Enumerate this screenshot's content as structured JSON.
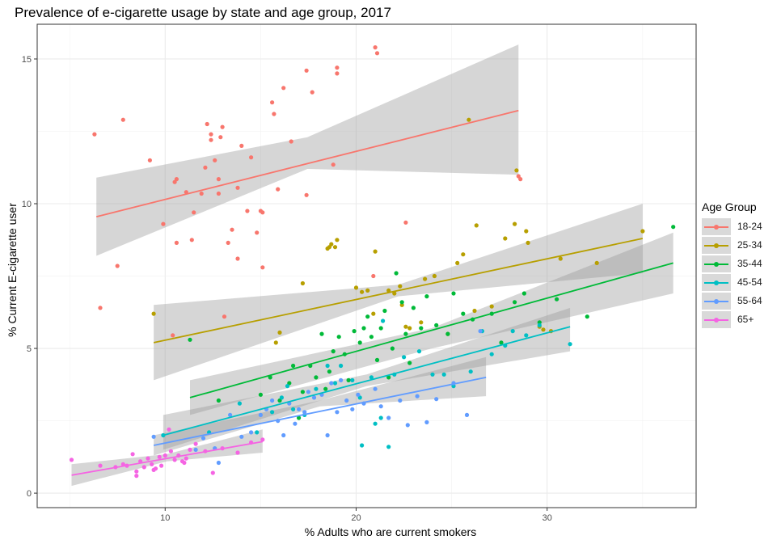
{
  "chart_data": {
    "type": "scatter",
    "title": "Prevalence of e-cigarette usage by state and age group, 2017",
    "xlabel": "% Adults who are current smokers",
    "ylabel": "% Current E-cigarette user",
    "xlim": [
      3.3,
      37.8
    ],
    "ylim": [
      -0.5,
      16.2
    ],
    "x_ticks": [
      10,
      20,
      30
    ],
    "y_ticks": [
      0,
      5,
      10,
      15
    ],
    "grid": true,
    "legend": {
      "title": "Age Group",
      "placement": "right"
    },
    "series": [
      {
        "name": "18-24",
        "color": "#F8766D",
        "fit": {
          "x0": 6.4,
          "y0": 9.55,
          "x1": 28.5,
          "y1": 13.22,
          "band_lo": [
            8.2,
            11.2,
            11.0
          ],
          "band_hi": [
            10.9,
            12.3,
            15.5
          ]
        },
        "points": [
          [
            6.3,
            12.4
          ],
          [
            6.6,
            6.4
          ],
          [
            7.5,
            7.85
          ],
          [
            7.8,
            12.9
          ],
          [
            9.2,
            11.5
          ],
          [
            9.9,
            9.3
          ],
          [
            10.4,
            5.45
          ],
          [
            10.5,
            10.75
          ],
          [
            10.6,
            8.65
          ],
          [
            10.6,
            10.85
          ],
          [
            11.1,
            10.4
          ],
          [
            11.4,
            8.75
          ],
          [
            11.5,
            9.7
          ],
          [
            11.9,
            10.35
          ],
          [
            12.1,
            11.25
          ],
          [
            12.2,
            12.75
          ],
          [
            12.4,
            12.4
          ],
          [
            12.4,
            12.2
          ],
          [
            12.6,
            11.5
          ],
          [
            12.8,
            10.35
          ],
          [
            12.8,
            10.85
          ],
          [
            12.9,
            12.3
          ],
          [
            13.0,
            12.65
          ],
          [
            13.1,
            6.1
          ],
          [
            13.3,
            8.65
          ],
          [
            13.5,
            9.1
          ],
          [
            13.8,
            10.55
          ],
          [
            13.8,
            8.1
          ],
          [
            14.0,
            12.0
          ],
          [
            14.3,
            9.75
          ],
          [
            14.5,
            11.6
          ],
          [
            14.8,
            9.0
          ],
          [
            15.0,
            9.75
          ],
          [
            15.1,
            9.7
          ],
          [
            15.1,
            7.8
          ],
          [
            15.6,
            13.5
          ],
          [
            15.7,
            13.1
          ],
          [
            15.9,
            10.5
          ],
          [
            16.2,
            14.0
          ],
          [
            16.6,
            12.15
          ],
          [
            17.4,
            14.6
          ],
          [
            17.4,
            10.3
          ],
          [
            17.7,
            13.85
          ],
          [
            18.8,
            11.35
          ],
          [
            19.0,
            14.7
          ],
          [
            19.0,
            14.5
          ],
          [
            20.9,
            7.5
          ],
          [
            21.0,
            15.4
          ],
          [
            21.1,
            15.2
          ],
          [
            22.6,
            9.35
          ],
          [
            28.5,
            10.95
          ],
          [
            28.6,
            10.85
          ]
        ]
      },
      {
        "name": "25-34",
        "color": "#B79F00",
        "fit": {
          "x0": 9.4,
          "y0": 5.2,
          "x1": 35.0,
          "y1": 8.8,
          "band_lo": [
            3.9,
            6.8,
            7.6
          ],
          "band_hi": [
            6.5,
            7.2,
            10.0
          ]
        },
        "points": [
          [
            9.4,
            6.2
          ],
          [
            15.8,
            5.2
          ],
          [
            16.0,
            5.55
          ],
          [
            17.2,
            7.25
          ],
          [
            18.5,
            8.45
          ],
          [
            18.6,
            8.5
          ],
          [
            18.7,
            8.6
          ],
          [
            18.9,
            8.5
          ],
          [
            19.0,
            8.75
          ],
          [
            20.0,
            7.1
          ],
          [
            20.3,
            6.95
          ],
          [
            20.6,
            7.0
          ],
          [
            20.9,
            6.2
          ],
          [
            21.0,
            8.35
          ],
          [
            21.7,
            7.0
          ],
          [
            22.0,
            6.9
          ],
          [
            22.3,
            7.15
          ],
          [
            22.4,
            6.5
          ],
          [
            22.6,
            5.75
          ],
          [
            22.8,
            5.7
          ],
          [
            23.4,
            5.9
          ],
          [
            23.6,
            7.4
          ],
          [
            24.1,
            7.5
          ],
          [
            24.8,
            5.5
          ],
          [
            25.3,
            7.95
          ],
          [
            25.6,
            8.25
          ],
          [
            25.9,
            12.9
          ],
          [
            26.3,
            9.25
          ],
          [
            26.2,
            6.3
          ],
          [
            27.1,
            6.45
          ],
          [
            27.8,
            8.8
          ],
          [
            28.3,
            9.3
          ],
          [
            28.4,
            11.15
          ],
          [
            28.9,
            9.05
          ],
          [
            29.0,
            8.65
          ],
          [
            29.6,
            5.75
          ],
          [
            29.8,
            5.65
          ],
          [
            30.2,
            5.6
          ],
          [
            30.7,
            8.1
          ],
          [
            32.6,
            7.95
          ],
          [
            35.0,
            9.05
          ]
        ]
      },
      {
        "name": "35-44",
        "color": "#00BA38",
        "fit": {
          "x0": 11.3,
          "y0": 3.3,
          "x1": 36.6,
          "y1": 7.95,
          "band_lo": [
            2.7,
            5.0,
            6.9
          ],
          "band_hi": [
            3.9,
            5.7,
            9.0
          ]
        },
        "points": [
          [
            11.3,
            5.3
          ],
          [
            12.8,
            3.2
          ],
          [
            15.0,
            3.4
          ],
          [
            15.5,
            4.0
          ],
          [
            16.0,
            3.2
          ],
          [
            16.5,
            3.8
          ],
          [
            16.7,
            4.4
          ],
          [
            17.0,
            2.6
          ],
          [
            17.2,
            3.5
          ],
          [
            17.6,
            4.4
          ],
          [
            17.9,
            4.0
          ],
          [
            18.2,
            5.5
          ],
          [
            18.4,
            3.6
          ],
          [
            18.6,
            4.2
          ],
          [
            18.8,
            4.9
          ],
          [
            19.1,
            5.4
          ],
          [
            19.4,
            4.8
          ],
          [
            19.6,
            3.9
          ],
          [
            19.9,
            5.6
          ],
          [
            20.2,
            5.2
          ],
          [
            20.4,
            5.7
          ],
          [
            20.6,
            6.1
          ],
          [
            20.8,
            5.4
          ],
          [
            21.1,
            4.6
          ],
          [
            21.3,
            5.7
          ],
          [
            21.5,
            6.3
          ],
          [
            21.7,
            4.0
          ],
          [
            21.9,
            5.0
          ],
          [
            22.1,
            7.6
          ],
          [
            22.4,
            6.6
          ],
          [
            22.6,
            5.5
          ],
          [
            22.8,
            4.5
          ],
          [
            23.0,
            6.4
          ],
          [
            23.4,
            5.7
          ],
          [
            23.7,
            6.8
          ],
          [
            24.2,
            5.8
          ],
          [
            24.8,
            5.5
          ],
          [
            25.1,
            6.9
          ],
          [
            25.6,
            6.2
          ],
          [
            26.1,
            6.0
          ],
          [
            27.1,
            6.2
          ],
          [
            27.6,
            5.2
          ],
          [
            28.3,
            6.6
          ],
          [
            28.8,
            6.9
          ],
          [
            29.6,
            5.9
          ],
          [
            30.5,
            6.7
          ],
          [
            32.1,
            6.1
          ],
          [
            36.6,
            9.2
          ]
        ]
      },
      {
        "name": "45-54",
        "color": "#00BFC4",
        "fit": {
          "x0": 9.9,
          "y0": 2.0,
          "x1": 31.2,
          "y1": 5.75,
          "band_lo": [
            1.5,
            3.7,
            4.9
          ],
          "band_hi": [
            2.7,
            4.1,
            6.4
          ]
        },
        "points": [
          [
            9.9,
            2.0
          ],
          [
            12.3,
            2.1
          ],
          [
            13.9,
            3.1
          ],
          [
            14.8,
            2.1
          ],
          [
            15.6,
            2.8
          ],
          [
            16.1,
            3.3
          ],
          [
            16.4,
            3.7
          ],
          [
            16.7,
            2.9
          ],
          [
            17.3,
            2.7
          ],
          [
            17.9,
            3.6
          ],
          [
            18.5,
            4.4
          ],
          [
            18.9,
            3.8
          ],
          [
            19.2,
            4.4
          ],
          [
            19.8,
            3.9
          ],
          [
            20.2,
            3.3
          ],
          [
            20.3,
            1.65
          ],
          [
            20.8,
            4.0
          ],
          [
            21.0,
            2.4
          ],
          [
            21.3,
            2.6
          ],
          [
            21.4,
            5.95
          ],
          [
            21.7,
            1.6
          ],
          [
            22.0,
            4.1
          ],
          [
            22.5,
            4.7
          ],
          [
            23.3,
            4.9
          ],
          [
            24.0,
            4.1
          ],
          [
            24.6,
            4.1
          ],
          [
            25.1,
            3.7
          ],
          [
            26.0,
            4.2
          ],
          [
            26.6,
            5.6
          ],
          [
            27.1,
            4.8
          ],
          [
            27.8,
            5.1
          ],
          [
            28.2,
            5.6
          ],
          [
            28.9,
            5.45
          ],
          [
            29.6,
            5.8
          ],
          [
            31.2,
            5.15
          ]
        ]
      },
      {
        "name": "55-64",
        "color": "#619CFF",
        "fit": {
          "x0": 9.4,
          "y0": 1.65,
          "x1": 26.8,
          "y1": 4.0,
          "band_lo": [
            1.3,
            3.0,
            3.35
          ],
          "band_hi": [
            2.0,
            3.2,
            4.7
          ]
        },
        "points": [
          [
            9.4,
            1.95
          ],
          [
            11.6,
            1.5
          ],
          [
            12.0,
            1.9
          ],
          [
            12.6,
            1.55
          ],
          [
            12.8,
            1.05
          ],
          [
            13.4,
            2.7
          ],
          [
            14.0,
            1.95
          ],
          [
            14.5,
            2.1
          ],
          [
            15.0,
            2.7
          ],
          [
            15.3,
            2.9
          ],
          [
            15.6,
            3.2
          ],
          [
            15.9,
            2.5
          ],
          [
            16.2,
            2.0
          ],
          [
            16.5,
            3.1
          ],
          [
            16.8,
            2.4
          ],
          [
            17.0,
            2.9
          ],
          [
            17.3,
            2.8
          ],
          [
            17.5,
            3.5
          ],
          [
            17.8,
            3.3
          ],
          [
            18.2,
            3.4
          ],
          [
            18.5,
            2.0
          ],
          [
            18.7,
            3.8
          ],
          [
            19.0,
            2.8
          ],
          [
            19.2,
            3.9
          ],
          [
            19.5,
            3.2
          ],
          [
            19.8,
            2.9
          ],
          [
            20.1,
            3.4
          ],
          [
            20.4,
            3.1
          ],
          [
            21.0,
            3.6
          ],
          [
            21.3,
            3.0
          ],
          [
            21.7,
            2.6
          ],
          [
            22.3,
            3.2
          ],
          [
            22.7,
            2.35
          ],
          [
            23.2,
            3.35
          ],
          [
            23.7,
            2.45
          ],
          [
            24.2,
            3.25
          ],
          [
            25.1,
            3.8
          ],
          [
            25.8,
            2.7
          ],
          [
            26.5,
            5.6
          ]
        ]
      },
      {
        "name": "65+",
        "color": "#F564E3",
        "fit": {
          "x0": 5.1,
          "y0": 0.62,
          "x1": 15.1,
          "y1": 1.78,
          "band_lo": [
            0.25,
            1.1,
            1.4
          ],
          "band_hi": [
            1.0,
            1.35,
            2.2
          ]
        },
        "points": [
          [
            5.1,
            1.15
          ],
          [
            6.6,
            0.95
          ],
          [
            7.4,
            0.9
          ],
          [
            7.8,
            1.0
          ],
          [
            8.0,
            0.95
          ],
          [
            8.3,
            1.35
          ],
          [
            8.5,
            0.75
          ],
          [
            8.7,
            1.1
          ],
          [
            8.9,
            0.9
          ],
          [
            9.1,
            1.2
          ],
          [
            9.3,
            1.0
          ],
          [
            9.5,
            0.85
          ],
          [
            9.7,
            1.25
          ],
          [
            9.8,
            0.95
          ],
          [
            10.0,
            1.3
          ],
          [
            10.2,
            2.2
          ],
          [
            10.3,
            1.45
          ],
          [
            10.5,
            1.15
          ],
          [
            10.7,
            1.3
          ],
          [
            10.9,
            1.1
          ],
          [
            11.1,
            1.2
          ],
          [
            11.3,
            1.5
          ],
          [
            11.6,
            1.7
          ],
          [
            12.1,
            1.45
          ],
          [
            12.5,
            0.7
          ],
          [
            13.0,
            1.55
          ],
          [
            13.8,
            1.4
          ],
          [
            14.5,
            1.75
          ],
          [
            15.1,
            1.85
          ],
          [
            8.5,
            0.6
          ],
          [
            9.4,
            0.8
          ],
          [
            11.0,
            1.05
          ]
        ]
      }
    ]
  }
}
